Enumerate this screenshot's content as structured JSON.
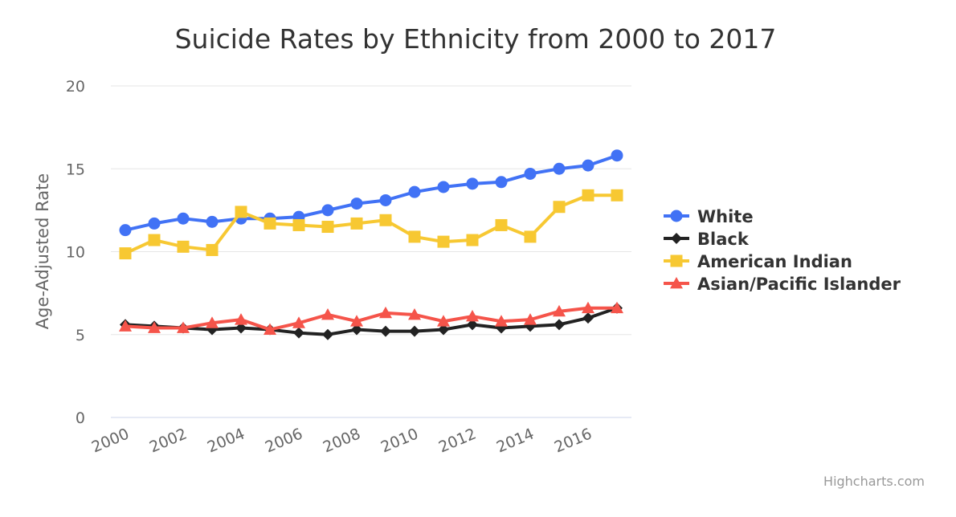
{
  "chart_data": {
    "type": "line",
    "title": "Suicide Rates by Ethnicity from 2000 to 2017",
    "xlabel": "",
    "ylabel": "Age-Adjusted Rate",
    "x": [
      2000,
      2001,
      2002,
      2003,
      2004,
      2005,
      2006,
      2007,
      2008,
      2009,
      2010,
      2011,
      2012,
      2013,
      2014,
      2015,
      2016,
      2017
    ],
    "x_tick_labels": [
      "2000",
      "2002",
      "2004",
      "2006",
      "2008",
      "2010",
      "2012",
      "2014",
      "2016"
    ],
    "y_ticks": [
      0,
      5,
      10,
      15,
      20
    ],
    "y_tick_labels": [
      "0",
      "5",
      "10",
      "15",
      "20"
    ],
    "ylim": [
      0,
      20
    ],
    "grid": true,
    "legend_position": "right",
    "series": [
      {
        "name": "White",
        "color": "#4172f5",
        "marker": "circle",
        "values": [
          11.3,
          11.7,
          12.0,
          11.8,
          12.0,
          12.0,
          12.1,
          12.5,
          12.9,
          13.1,
          13.6,
          13.9,
          14.1,
          14.2,
          14.7,
          15.0,
          15.2,
          15.8
        ]
      },
      {
        "name": "Black",
        "color": "#222222",
        "marker": "diamond",
        "values": [
          5.6,
          5.5,
          5.4,
          5.3,
          5.4,
          5.3,
          5.1,
          5.0,
          5.3,
          5.2,
          5.2,
          5.3,
          5.6,
          5.4,
          5.5,
          5.6,
          6.0,
          6.6
        ]
      },
      {
        "name": "American Indian",
        "color": "#f7c832",
        "marker": "square",
        "values": [
          9.9,
          10.7,
          10.3,
          10.1,
          12.4,
          11.7,
          11.6,
          11.5,
          11.7,
          11.9,
          10.9,
          10.6,
          10.7,
          11.6,
          10.9,
          12.7,
          13.4,
          13.4
        ]
      },
      {
        "name": "Asian/Pacific Islander",
        "color": "#f5544a",
        "marker": "triangle",
        "values": [
          5.5,
          5.4,
          5.4,
          5.7,
          5.9,
          5.3,
          5.7,
          6.2,
          5.8,
          6.3,
          6.2,
          5.8,
          6.1,
          5.8,
          5.9,
          6.4,
          6.6,
          6.6
        ]
      }
    ],
    "credit": "Highcharts.com"
  }
}
